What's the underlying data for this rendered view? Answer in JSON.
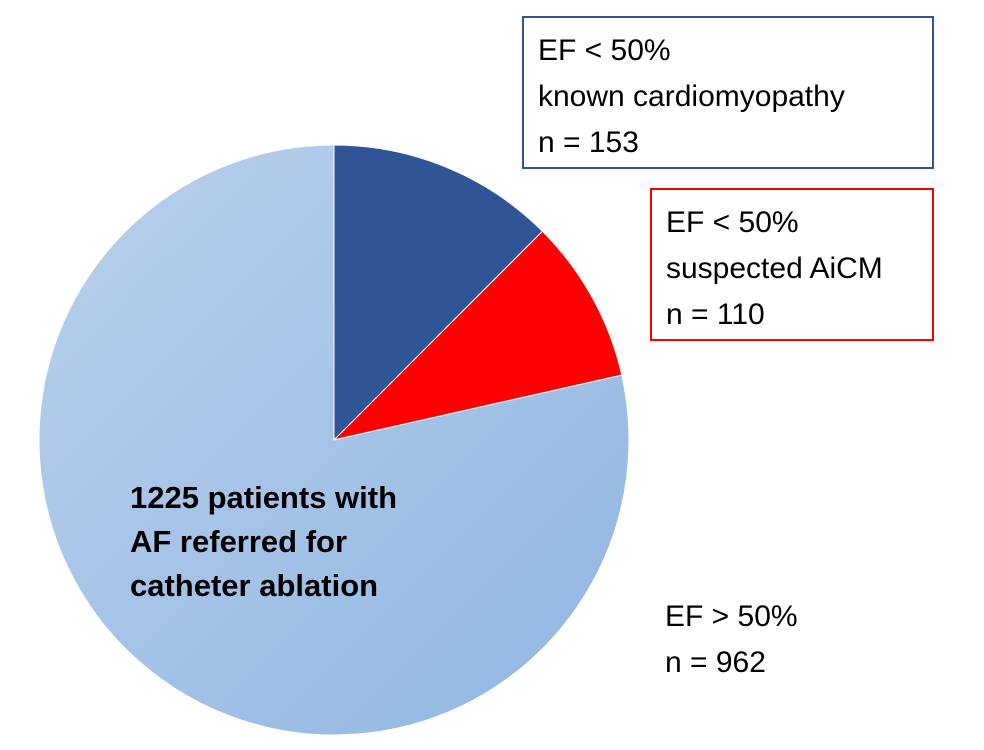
{
  "chart_data": {
    "type": "pie",
    "center_label": [
      "1225 patients with",
      "AF referred for",
      "catheter ablation"
    ],
    "slices": [
      {
        "key": "known",
        "lines": [
          "EF < 50%",
          "known cardiomyopathy",
          "n = 153"
        ],
        "value": 153,
        "color": "#2f5597"
      },
      {
        "key": "aicm",
        "lines": [
          "EF < 50%",
          "suspected AiCM",
          "n = 110"
        ],
        "value": 110,
        "color": "#ff0000"
      },
      {
        "key": "normal",
        "lines": [
          "EF > 50%",
          "n = 962"
        ],
        "value": 962,
        "color": "#a9c5e8"
      }
    ]
  }
}
